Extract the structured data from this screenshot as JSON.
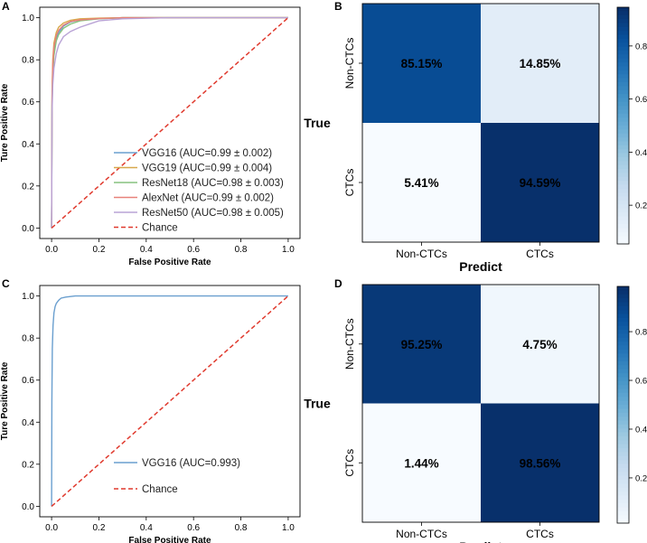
{
  "panels": {
    "A": "A",
    "B": "B",
    "C": "C",
    "D": "D"
  },
  "colors": {
    "vgg16": "#6a9fcf",
    "vgg19": "#d8a84c",
    "resnet18": "#86c27e",
    "alexnet": "#e8827a",
    "resnet50": "#b9a3d6",
    "chance": "#e03a2e",
    "cmap_low": "#f5f9fd",
    "cmap_high": "#08306b"
  },
  "chart_data": [
    {
      "id": "A",
      "type": "line",
      "title": "",
      "xlabel": "False Positive Rate",
      "ylabel": "Ture Positive Rate",
      "xlim": [
        -0.05,
        1.05
      ],
      "ylim": [
        -0.05,
        1.05
      ],
      "xticks": [
        "0.0",
        "0.2",
        "0.4",
        "0.6",
        "0.8",
        "1.0"
      ],
      "yticks": [
        "0.0",
        "0.2",
        "0.4",
        "0.6",
        "0.8",
        "1.0"
      ],
      "legend_position": "bottom-right",
      "series": [
        {
          "name": "VGG16 (AUC=0.99 ± 0.002)",
          "color_key": "vgg16",
          "dash": false,
          "x": [
            0,
            0.002,
            0.005,
            0.01,
            0.02,
            0.03,
            0.05,
            0.08,
            0.12,
            0.2,
            0.3,
            0.5,
            1.0
          ],
          "y": [
            0,
            0.6,
            0.75,
            0.84,
            0.9,
            0.93,
            0.96,
            0.98,
            0.99,
            0.995,
            1.0,
            1.0,
            1.0
          ]
        },
        {
          "name": "VGG19 (AUC=0.99 ± 0.004)",
          "color_key": "vgg19",
          "dash": false,
          "x": [
            0,
            0.002,
            0.005,
            0.01,
            0.02,
            0.03,
            0.05,
            0.08,
            0.12,
            0.2,
            0.3,
            0.5,
            1.0
          ],
          "y": [
            0,
            0.65,
            0.8,
            0.88,
            0.93,
            0.955,
            0.975,
            0.988,
            0.995,
            0.998,
            1.0,
            1.0,
            1.0
          ]
        },
        {
          "name": "ResNet18 (AUC=0.98 ± 0.003)",
          "color_key": "resnet18",
          "dash": false,
          "x": [
            0,
            0.002,
            0.005,
            0.01,
            0.02,
            0.03,
            0.05,
            0.08,
            0.12,
            0.2,
            0.3,
            0.5,
            1.0
          ],
          "y": [
            0,
            0.58,
            0.72,
            0.82,
            0.89,
            0.92,
            0.95,
            0.97,
            0.985,
            0.995,
            1.0,
            1.0,
            1.0
          ]
        },
        {
          "name": "AlexNet (AUC=0.99 ± 0.002)",
          "color_key": "alexnet",
          "dash": false,
          "x": [
            0,
            0.002,
            0.005,
            0.01,
            0.02,
            0.03,
            0.05,
            0.08,
            0.12,
            0.2,
            0.3,
            0.5,
            1.0
          ],
          "y": [
            0,
            0.62,
            0.77,
            0.86,
            0.915,
            0.94,
            0.965,
            0.982,
            0.99,
            0.996,
            1.0,
            1.0,
            1.0
          ]
        },
        {
          "name": "ResNet50 (AUC=0.98 ± 0.005)",
          "color_key": "resnet50",
          "dash": false,
          "x": [
            0,
            0.002,
            0.005,
            0.01,
            0.02,
            0.03,
            0.05,
            0.08,
            0.12,
            0.16,
            0.2,
            0.3,
            0.5,
            1.0
          ],
          "y": [
            0,
            0.55,
            0.68,
            0.76,
            0.83,
            0.87,
            0.91,
            0.935,
            0.955,
            0.97,
            0.985,
            0.995,
            1.0,
            1.0
          ]
        },
        {
          "name": "Chance",
          "color_key": "chance",
          "dash": true,
          "x": [
            0,
            1
          ],
          "y": [
            0,
            1
          ]
        }
      ]
    },
    {
      "id": "B",
      "type": "heatmap",
      "xlabel": "Predict",
      "ylabel": "True",
      "x_categories": [
        "Non-CTCs",
        "CTCs"
      ],
      "y_categories": [
        "Non-CTCs",
        "CTCs"
      ],
      "values": [
        [
          0.8515,
          0.1485
        ],
        [
          0.0541,
          0.9459
        ]
      ],
      "labels": [
        [
          "85.15%",
          "14.85%"
        ],
        [
          "5.41%",
          "94.59%"
        ]
      ],
      "colorbar": {
        "min": 0.0541,
        "max": 0.9459,
        "ticks": [
          0.2,
          0.4,
          0.6,
          0.8
        ],
        "tick_labels": [
          "0.2",
          "0.4",
          "0.6",
          "0.8"
        ]
      }
    },
    {
      "id": "C",
      "type": "line",
      "title": "",
      "xlabel": "False Positive Rate",
      "ylabel": "Ture Positive Rate",
      "xlim": [
        -0.05,
        1.05
      ],
      "ylim": [
        -0.05,
        1.05
      ],
      "xticks": [
        "0.0",
        "0.2",
        "0.4",
        "0.6",
        "0.8",
        "1.0"
      ],
      "yticks": [
        "0.0",
        "0.2",
        "0.4",
        "0.6",
        "0.8",
        "1.0"
      ],
      "legend_position": "bottom-right",
      "series": [
        {
          "name": "VGG16 (AUC=0.993)",
          "color_key": "vgg16",
          "dash": false,
          "x": [
            0,
            0.001,
            0.003,
            0.006,
            0.01,
            0.015,
            0.02,
            0.03,
            0.04,
            0.06,
            0.1,
            0.2,
            1.0
          ],
          "y": [
            0,
            0.5,
            0.75,
            0.86,
            0.92,
            0.95,
            0.965,
            0.98,
            0.99,
            0.995,
            1.0,
            1.0,
            1.0
          ]
        },
        {
          "name": "Chance",
          "color_key": "chance",
          "dash": true,
          "x": [
            0,
            1
          ],
          "y": [
            0,
            1
          ]
        }
      ]
    },
    {
      "id": "D",
      "type": "heatmap",
      "xlabel": "Predict",
      "ylabel": "True",
      "x_categories": [
        "Non-CTCs",
        "CTCs"
      ],
      "y_categories": [
        "Non-CTCs",
        "CTCs"
      ],
      "values": [
        [
          0.9525,
          0.0475
        ],
        [
          0.0144,
          0.9856
        ]
      ],
      "labels": [
        [
          "95.25%",
          "4.75%"
        ],
        [
          "1.44%",
          "98.56%"
        ]
      ],
      "colorbar": {
        "min": 0.0144,
        "max": 0.9856,
        "ticks": [
          0.2,
          0.4,
          0.6,
          0.8
        ],
        "tick_labels": [
          "0.2",
          "0.4",
          "0.6",
          "0.8"
        ]
      }
    }
  ]
}
